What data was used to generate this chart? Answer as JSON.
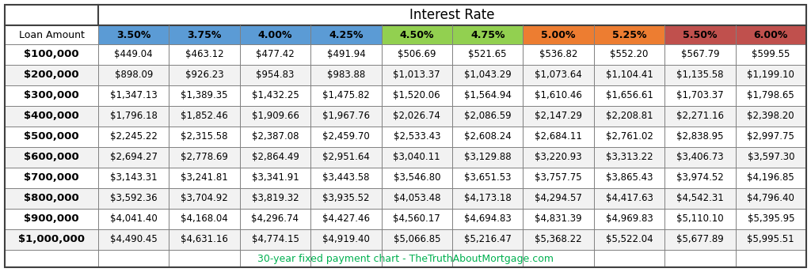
{
  "title": "Interest Rate",
  "footer": "30-year fixed payment chart - TheTruthAboutMortgage.com",
  "col_header_label": "Loan Amount",
  "col_headers": [
    "3.50%",
    "3.75%",
    "4.00%",
    "4.25%",
    "4.50%",
    "4.75%",
    "5.00%",
    "5.25%",
    "5.50%",
    "6.00%"
  ],
  "col_header_colors": [
    "#5b9bd5",
    "#5b9bd5",
    "#5b9bd5",
    "#5b9bd5",
    "#92d050",
    "#92d050",
    "#ed7d31",
    "#ed7d31",
    "#c0504d",
    "#c0504d"
  ],
  "row_labels": [
    "$100,000",
    "$200,000",
    "$300,000",
    "$400,000",
    "$500,000",
    "$600,000",
    "$700,000",
    "$800,000",
    "$900,000",
    "$1,000,000"
  ],
  "table_data": [
    [
      "$449.04",
      "$463.12",
      "$477.42",
      "$491.94",
      "$506.69",
      "$521.65",
      "$536.82",
      "$552.20",
      "$567.79",
      "$599.55"
    ],
    [
      "$898.09",
      "$926.23",
      "$954.83",
      "$983.88",
      "$1,013.37",
      "$1,043.29",
      "$1,073.64",
      "$1,104.41",
      "$1,135.58",
      "$1,199.10"
    ],
    [
      "$1,347.13",
      "$1,389.35",
      "$1,432.25",
      "$1,475.82",
      "$1,520.06",
      "$1,564.94",
      "$1,610.46",
      "$1,656.61",
      "$1,703.37",
      "$1,798.65"
    ],
    [
      "$1,796.18",
      "$1,852.46",
      "$1,909.66",
      "$1,967.76",
      "$2,026.74",
      "$2,086.59",
      "$2,147.29",
      "$2,208.81",
      "$2,271.16",
      "$2,398.20"
    ],
    [
      "$2,245.22",
      "$2,315.58",
      "$2,387.08",
      "$2,459.70",
      "$2,533.43",
      "$2,608.24",
      "$2,684.11",
      "$2,761.02",
      "$2,838.95",
      "$2,997.75"
    ],
    [
      "$2,694.27",
      "$2,778.69",
      "$2,864.49",
      "$2,951.64",
      "$3,040.11",
      "$3,129.88",
      "$3,220.93",
      "$3,313.22",
      "$3,406.73",
      "$3,597.30"
    ],
    [
      "$3,143.31",
      "$3,241.81",
      "$3,341.91",
      "$3,443.58",
      "$3,546.80",
      "$3,651.53",
      "$3,757.75",
      "$3,865.43",
      "$3,974.52",
      "$4,196.85"
    ],
    [
      "$3,592.36",
      "$3,704.92",
      "$3,819.32",
      "$3,935.52",
      "$4,053.48",
      "$4,173.18",
      "$4,294.57",
      "$4,417.63",
      "$4,542.31",
      "$4,796.40"
    ],
    [
      "$4,041.40",
      "$4,168.04",
      "$4,296.74",
      "$4,427.46",
      "$4,560.17",
      "$4,694.83",
      "$4,831.39",
      "$4,969.83",
      "$5,110.10",
      "$5,395.95"
    ],
    [
      "$4,490.45",
      "$4,631.16",
      "$4,774.15",
      "$4,919.40",
      "$5,066.85",
      "$5,216.47",
      "$5,368.22",
      "$5,522.04",
      "$5,677.89",
      "$5,995.51"
    ]
  ],
  "bg_color": "#ffffff",
  "outer_border_color": "#404040",
  "grid_color": "#808080",
  "footer_color": "#00b050",
  "footer_fontsize": 9,
  "cell_fontsize": 8.5,
  "header_fontsize": 9,
  "title_fontsize": 12,
  "row_label_fontsize": 9.5,
  "row_alt_colors": [
    "#ffffff",
    "#f2f2f2"
  ]
}
